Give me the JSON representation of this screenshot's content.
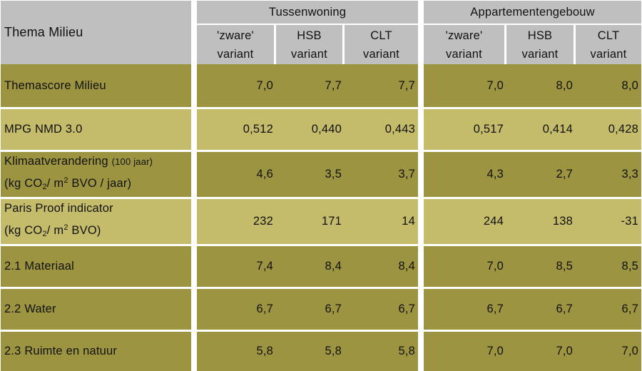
{
  "table": {
    "corner_label": "Thema Milieu",
    "groups": [
      {
        "title": "Tussenwoning"
      },
      {
        "title": "Appartementengebouw"
      }
    ],
    "subheaders": [
      {
        "line1": "'zware'",
        "line2": "variant"
      },
      {
        "line1": "HSB",
        "line2": "variant"
      },
      {
        "line1": "CLT",
        "line2": "variant"
      },
      {
        "line1": "'zware'",
        "line2": "variant"
      },
      {
        "line1": "HSB",
        "line2": "variant"
      },
      {
        "line1": "CLT",
        "line2": "variant"
      }
    ],
    "rows": [
      {
        "label": "Themascore Milieu",
        "values": [
          "7,0",
          "7,7",
          "7,7",
          "7,0",
          "8,0",
          "8,0"
        ]
      },
      {
        "label": "MPG NMD 3.0",
        "values": [
          "0,512",
          "0,440",
          "0,443",
          "0,517",
          "0,414",
          "0,428"
        ]
      },
      {
        "label": "Klimaatverandering",
        "label_note": "(100 jaar)",
        "unit_pre": "(kg CO",
        "unit_sub": "2",
        "unit_mid": "/ m",
        "unit_sup": "2",
        "unit_post": " BVO / jaar)",
        "values": [
          "4,6",
          "3,5",
          "3,7",
          "4,3",
          "2,7",
          "3,3"
        ]
      },
      {
        "label": "Paris Proof indicator",
        "unit_pre": "(kg CO",
        "unit_sub": "2",
        "unit_mid": "/ m",
        "unit_sup": "2",
        "unit_post": " BVO)",
        "values": [
          "232",
          "171",
          "14",
          "244",
          "138",
          "-31"
        ]
      },
      {
        "label": "2.1 Materiaal",
        "values": [
          "7,4",
          "8,4",
          "8,4",
          "7,0",
          "8,5",
          "8,5"
        ]
      },
      {
        "label": "2.2 Water",
        "values": [
          "6,7",
          "6,7",
          "6,7",
          "6,7",
          "6,7",
          "6,7"
        ]
      },
      {
        "label": "2.3 Ruimte en natuur",
        "values": [
          "5,8",
          "5,8",
          "5,8",
          "7,0",
          "7,0",
          "7,0"
        ]
      }
    ]
  },
  "colors": {
    "header_bg": "#bfbfbf",
    "row_dark": "#9c9440",
    "row_light": "#c5bc6b",
    "separator": "#ffffff"
  }
}
